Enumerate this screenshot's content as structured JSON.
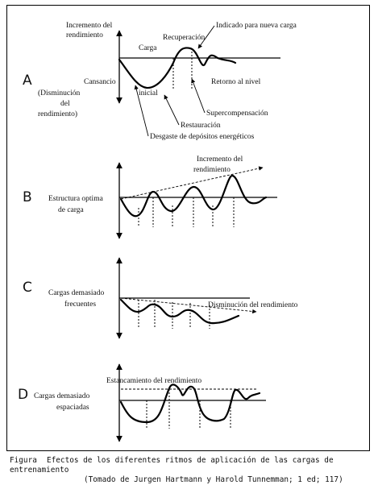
{
  "panels": {
    "A": {
      "letter": "A",
      "labels": {
        "increment": [
          "Incremento del",
          "rendimiento"
        ],
        "decrement": [
          "(Disminución",
          "del",
          "rendimiento)"
        ],
        "carga": "Carga",
        "recuperacion": "Recuperación",
        "indicado": "Indicado para nueva carga",
        "cansancio": "Cansancio",
        "inicial": "inicial",
        "retorno": "Retorno al nivel",
        "supercompensacion": "Supercompensación",
        "restauracion": "Restauración",
        "desgaste": "Desgaste de depósitos energéticos"
      }
    },
    "B": {
      "letter": "B",
      "labels": {
        "estructura": [
          "Estructura optima",
          "de carga"
        ],
        "incremento": [
          "Incremento del",
          "rendimiento"
        ]
      }
    },
    "C": {
      "letter": "C",
      "labels": {
        "cargas": [
          "Cargas demasiado",
          "frecuentes"
        ],
        "disminucion": "Disminución del rendimiento"
      }
    },
    "D": {
      "letter": "D",
      "labels": {
        "cargas": [
          "Cargas demasiado",
          "espaciadas"
        ],
        "estancamiento": "Estancamiento del rendimiento"
      }
    }
  },
  "caption": {
    "lead": "Figura",
    "line1": "Efectos de los diferentes ritmos de aplicación de las cargas de entrenamiento",
    "line2": "(Tomado de Jurgen Hartmann y Harold Tunnemman; 1 ed; 117)"
  },
  "colors": {
    "ink": "#000000",
    "background": "#ffffff"
  }
}
